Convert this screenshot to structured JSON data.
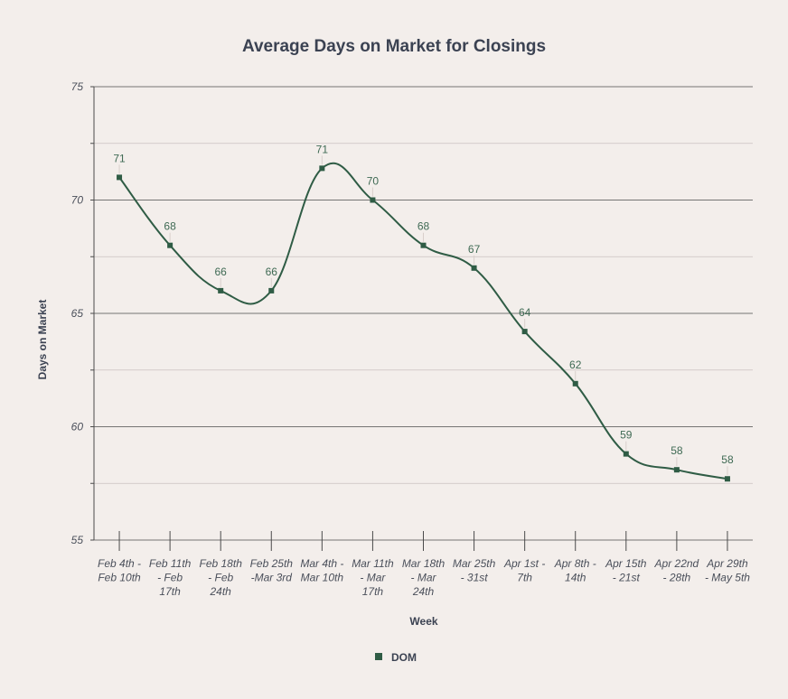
{
  "chart_data": {
    "type": "line",
    "title": "Average Days on Market for Closings",
    "xlabel": "Week",
    "ylabel": "Days on Market",
    "categories": [
      "Feb 4th - Feb 10th",
      "Feb 11th - Feb 17th",
      "Feb 18th - Feb 24th",
      "Feb 25th -Mar 3rd",
      "Mar 4th - Mar 10th",
      "Mar 11th - Mar 17th",
      "Mar 18th - Mar 24th",
      "Mar 25th - 31st",
      "Apr 1st - 7th",
      "Apr 8th - 14th",
      "Apr 15th - 21st",
      "Apr 22nd - 28th",
      "Apr 29th - May 5th"
    ],
    "category_lines": [
      [
        "Feb 4th -",
        "Feb 10th"
      ],
      [
        "Feb 11th",
        "- Feb",
        "17th"
      ],
      [
        "Feb 18th",
        "- Feb",
        "24th"
      ],
      [
        "Feb 25th",
        "-Mar 3rd"
      ],
      [
        "Mar 4th -",
        "Mar 10th"
      ],
      [
        "Mar 11th",
        "- Mar",
        "17th"
      ],
      [
        "Mar 18th",
        "- Mar",
        "24th"
      ],
      [
        "Mar 25th",
        "- 31st"
      ],
      [
        "Apr 1st -",
        "7th"
      ],
      [
        "Apr 8th -",
        "14th"
      ],
      [
        "Apr 15th",
        "- 21st"
      ],
      [
        "Apr 22nd",
        "- 28th"
      ],
      [
        "Apr 29th",
        "- May 5th"
      ]
    ],
    "series": [
      {
        "name": "DOM",
        "color": "#2f5c45",
        "values": [
          71,
          68,
          66,
          66,
          71.4,
          70,
          68,
          67,
          64.2,
          61.9,
          58.8,
          58.1,
          57.7
        ],
        "labels": [
          "71",
          "68",
          "66",
          "66",
          "71",
          "70",
          "68",
          "67",
          "64",
          "62",
          "59",
          "58",
          "58"
        ]
      }
    ],
    "ylim": [
      55,
      75
    ],
    "yticks": [
      55,
      60,
      65,
      70,
      75
    ],
    "yticks_minor": [
      57.5,
      62.5,
      67.5,
      72.5
    ],
    "grid": true,
    "legend": "bottom"
  }
}
